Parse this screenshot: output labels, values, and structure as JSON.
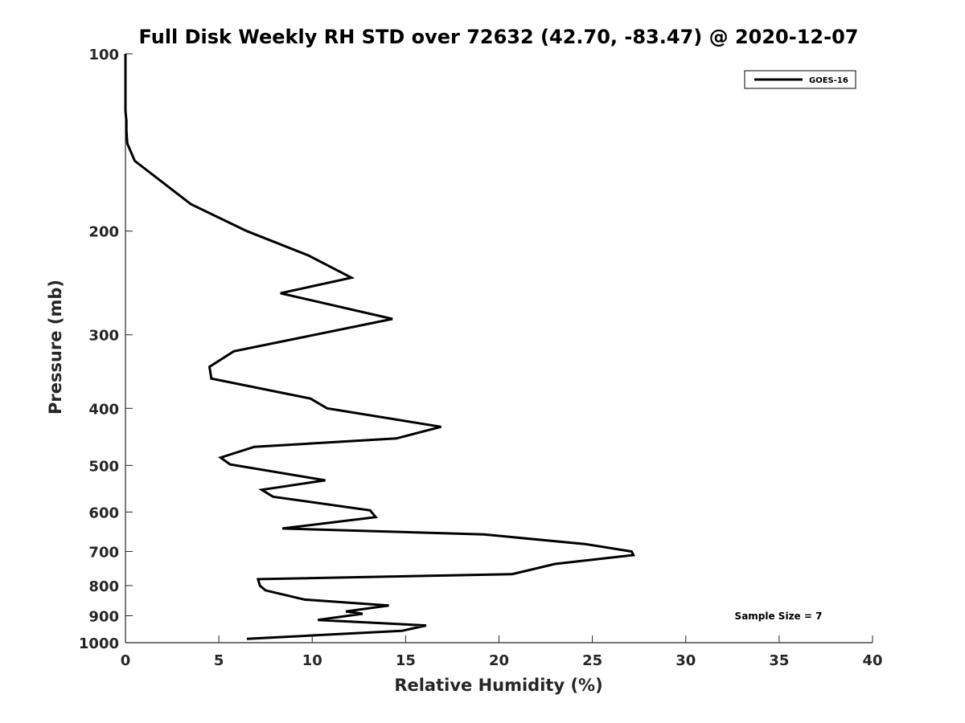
{
  "chart_data": {
    "type": "line",
    "title": "Full Disk Weekly RH STD over 72632 (42.70, -83.47) @ 2020-12-07",
    "xlabel": "Relative Humidity (%)",
    "ylabel": "Pressure (mb)",
    "xlim": [
      0,
      40
    ],
    "ylim": [
      1000,
      100
    ],
    "yscale": "log",
    "xticks": [
      0,
      5,
      10,
      15,
      20,
      25,
      30,
      35,
      40
    ],
    "xtick_labels": [
      "0",
      "5",
      "10",
      "15",
      "20",
      "25",
      "30",
      "35",
      "40"
    ],
    "yticks": [
      100,
      200,
      300,
      400,
      500,
      600,
      700,
      800,
      900,
      1000
    ],
    "ytick_labels": [
      "100",
      "200",
      "300",
      "400",
      "500",
      "600",
      "700",
      "800",
      "900",
      "1000"
    ],
    "legend": {
      "entries": [
        "GOES-16"
      ],
      "location": "top-right"
    },
    "annotation": "Sample Size = 7",
    "series": [
      {
        "name": "GOES-16",
        "color": "#000000",
        "points": [
          [
            0.0,
            100
          ],
          [
            0.0,
            105
          ],
          [
            0.0,
            110
          ],
          [
            0.0,
            115
          ],
          [
            0.0,
            120
          ],
          [
            0.0,
            125
          ],
          [
            0.05,
            130
          ],
          [
            0.05,
            135
          ],
          [
            0.1,
            142
          ],
          [
            0.5,
            152
          ],
          [
            3.5,
            180
          ],
          [
            6.5,
            200
          ],
          [
            9.8,
            220
          ],
          [
            12.1,
            240
          ],
          [
            8.3,
            255
          ],
          [
            14.3,
            282
          ],
          [
            5.8,
            320
          ],
          [
            4.5,
            340
          ],
          [
            4.6,
            356
          ],
          [
            9.9,
            385
          ],
          [
            10.8,
            400
          ],
          [
            16.9,
            430
          ],
          [
            14.5,
            450
          ],
          [
            6.9,
            465
          ],
          [
            5.1,
            485
          ],
          [
            5.6,
            498
          ],
          [
            10.7,
            530
          ],
          [
            7.3,
            550
          ],
          [
            7.9,
            565
          ],
          [
            13.1,
            596
          ],
          [
            13.4,
            612
          ],
          [
            8.4,
            640
          ],
          [
            19.2,
            655
          ],
          [
            24.6,
            680
          ],
          [
            27.1,
            700
          ],
          [
            27.2,
            710
          ],
          [
            23.0,
            735
          ],
          [
            20.7,
            765
          ],
          [
            7.1,
            780
          ],
          [
            7.2,
            800
          ],
          [
            7.5,
            815
          ],
          [
            9.6,
            845
          ],
          [
            14.1,
            865
          ],
          [
            11.8,
            885
          ],
          [
            12.7,
            893
          ],
          [
            10.3,
            915
          ],
          [
            16.1,
            935
          ],
          [
            14.8,
            955
          ],
          [
            6.5,
            985
          ]
        ]
      }
    ]
  }
}
